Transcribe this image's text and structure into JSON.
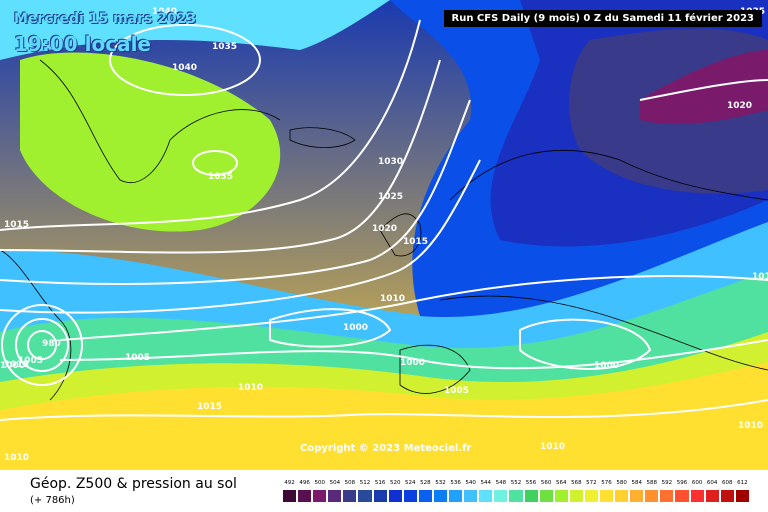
{
  "header": {
    "date": "Mercredi 15 mars 2023",
    "time": "19:00 locale",
    "run": "Run CFS Daily (9 mois) 0 Z du Samedi 11 février 2023"
  },
  "copyright": "Copyright © 2023 Meteociel.fr",
  "footer": {
    "title": "Géop. Z500 & pression au sol",
    "subtitle": "(+ 786h)"
  },
  "isobar_labels": [
    "1040",
    "1040",
    "1035",
    "1035",
    "1035",
    "1030",
    "1025",
    "1020",
    "1020",
    "1015",
    "1015",
    "1015",
    "1015",
    "1010",
    "1010",
    "1010",
    "1010",
    "1010",
    "1010",
    "1005",
    "1005",
    "1005",
    "1000",
    "1000",
    "1000",
    "1000",
    "980"
  ],
  "legend": {
    "values": [
      "492",
      "496",
      "500",
      "504",
      "508",
      "512",
      "516",
      "520",
      "524",
      "528",
      "532",
      "536",
      "540",
      "544",
      "548",
      "552",
      "556",
      "560",
      "564",
      "568",
      "572",
      "576",
      "580",
      "584",
      "588",
      "592",
      "596",
      "600",
      "604",
      "608",
      "612"
    ],
    "colors": [
      "#3d0a35",
      "#5a1050",
      "#7a1a6a",
      "#5a2a7a",
      "#3a3a8a",
      "#2a4a9a",
      "#1a3ab0",
      "#1030d0",
      "#0a40e0",
      "#0a60f0",
      "#0a80f8",
      "#20a0ff",
      "#40c0ff",
      "#60e0ff",
      "#70f0e0",
      "#50e0a0",
      "#40d060",
      "#70e040",
      "#a0f030",
      "#d0f030",
      "#f0f030",
      "#ffe030",
      "#ffd030",
      "#ffb030",
      "#ff9030",
      "#ff7030",
      "#ff5030",
      "#ff3030",
      "#e02020",
      "#c01010",
      "#a00000"
    ]
  }
}
